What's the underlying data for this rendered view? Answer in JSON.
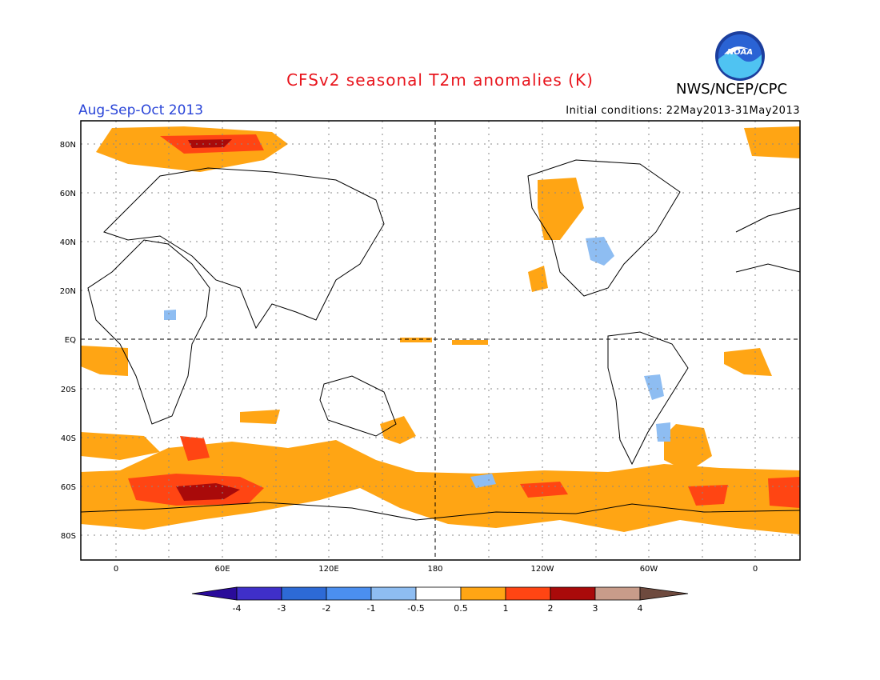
{
  "title": "CFSv2 seasonal T2m anomalies (K)",
  "season": "Aug-Sep-Oct 2013",
  "initial_conditions": "Initial conditions: 22May2013-31May2013",
  "agency": "NWS/NCEP/CPC",
  "logo_text": "NOAA",
  "colors": {
    "title": "#e8141c",
    "season": "#2a45d8",
    "cold_4": "#2a0b9a",
    "cold_3": "#3f2fc9",
    "cold_2": "#2d6ad6",
    "cold_1": "#4b8ff0",
    "cold_05": "#8ebdf2",
    "neutral": "#ffffff",
    "warm_05": "#ffa514",
    "warm_1": "#ff4513",
    "warm_2": "#a90a0a",
    "warm_3": "#c89c8a",
    "warm_4": "#6e4a3e"
  },
  "map": {
    "lat_labels": [
      "80N",
      "60N",
      "40N",
      "20N",
      "EQ",
      "20S",
      "40S",
      "60S",
      "80S"
    ],
    "lon_labels": [
      "0",
      "60E",
      "120E",
      "180",
      "120W",
      "60W",
      "0"
    ]
  },
  "colorbar": {
    "labels": [
      "-4",
      "-3",
      "-2",
      "-1",
      "-0.5",
      "0.5",
      "1",
      "2",
      "3",
      "4"
    ]
  }
}
